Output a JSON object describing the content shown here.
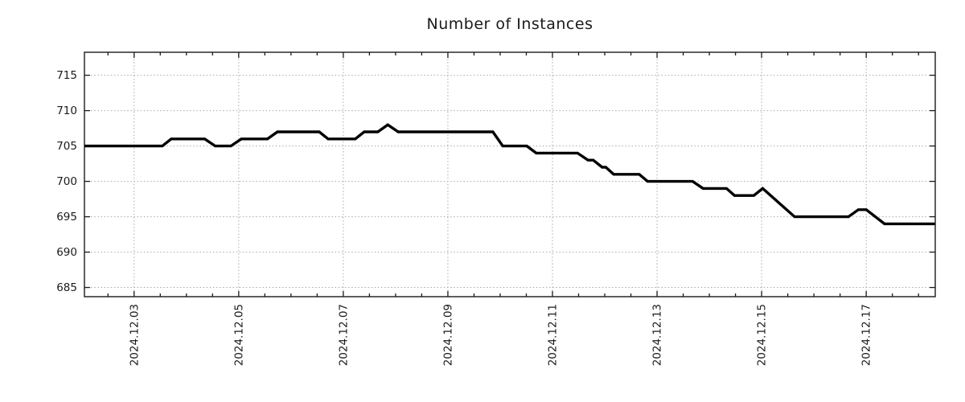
{
  "chart_data": {
    "type": "line",
    "title": "Number of Instances",
    "x_axis": {
      "unit": "date (2024, December, decimal day)",
      "range_days": [
        2.05,
        18.32
      ],
      "minor_tick_step_days": 0.5,
      "major_ticks": [
        {
          "x": 3,
          "label": "2024.12.03"
        },
        {
          "x": 5,
          "label": "2024.12.05"
        },
        {
          "x": 7,
          "label": "2024.12.07"
        },
        {
          "x": 9,
          "label": "2024.12.09"
        },
        {
          "x": 11,
          "label": "2024.12.11"
        },
        {
          "x": 13,
          "label": "2024.12.13"
        },
        {
          "x": 15,
          "label": "2024.12.15"
        },
        {
          "x": 17,
          "label": "2024.12.17"
        }
      ],
      "tick_label_rotation_deg": 90
    },
    "y_axis": {
      "ticks": [
        685,
        690,
        695,
        700,
        705,
        710,
        715
      ],
      "range": [
        683.7,
        718.25
      ]
    },
    "grid": {
      "style": "dotted",
      "on": true
    },
    "legend": "none",
    "series": [
      {
        "name": "instances",
        "points_day_value": [
          [
            2.05,
            705
          ],
          [
            3.54,
            705
          ],
          [
            3.71,
            706
          ],
          [
            4.35,
            706
          ],
          [
            4.55,
            705
          ],
          [
            4.85,
            705
          ],
          [
            5.05,
            706
          ],
          [
            5.55,
            706
          ],
          [
            5.74,
            707
          ],
          [
            6.54,
            707
          ],
          [
            6.71,
            706
          ],
          [
            7.23,
            706
          ],
          [
            7.4,
            707
          ],
          [
            7.66,
            707
          ],
          [
            7.85,
            708
          ],
          [
            8.05,
            707
          ],
          [
            9.86,
            707
          ],
          [
            10.05,
            705
          ],
          [
            10.51,
            705
          ],
          [
            10.69,
            704
          ],
          [
            11.48,
            704
          ],
          [
            11.68,
            703
          ],
          [
            11.78,
            703
          ],
          [
            11.95,
            702
          ],
          [
            12.02,
            702
          ],
          [
            12.17,
            701
          ],
          [
            12.66,
            701
          ],
          [
            12.82,
            700
          ],
          [
            13.68,
            700
          ],
          [
            13.88,
            699
          ],
          [
            14.33,
            699
          ],
          [
            14.48,
            698
          ],
          [
            14.85,
            698
          ],
          [
            15.02,
            699
          ],
          [
            15.63,
            695
          ],
          [
            16.66,
            695
          ],
          [
            16.85,
            696
          ],
          [
            17.0,
            696
          ],
          [
            17.35,
            694
          ],
          [
            18.32,
            694
          ]
        ]
      }
    ]
  },
  "colors": {
    "line": "#000000",
    "grid": "#a8a8a8",
    "axis": "#1a1a1a",
    "text": "#1a1a1a",
    "background": "#ffffff"
  }
}
